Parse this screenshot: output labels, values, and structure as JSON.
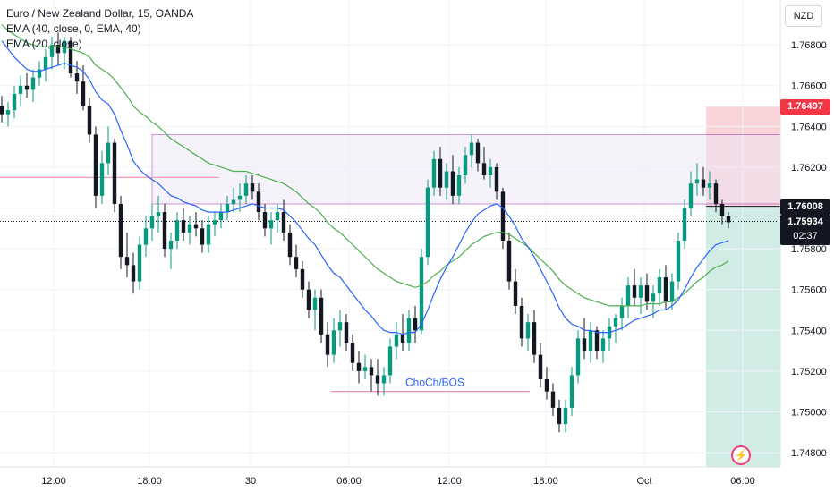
{
  "chart_data": {
    "type": "candlestick",
    "title": "Euro / New Zealand Dollar, 15, OANDA",
    "currency": "NZD",
    "indicators": [
      {
        "label": "EMA (40, close, 0, EMA, 40)",
        "color": "#4caf50"
      },
      {
        "label": "EMA (20, close)",
        "color": "#2962ff"
      }
    ],
    "y_ticks": [
      "1.76800",
      "1.76600",
      "1.76400",
      "1.76200",
      "1.76000",
      "1.75800",
      "1.75600",
      "1.75400",
      "1.75200",
      "1.75000",
      "1.74800"
    ],
    "ylim": [
      1.7473,
      1.7702
    ],
    "x_ticks": [
      "12:00",
      "18:00",
      "30",
      "06:00",
      "12:00",
      "18:00",
      "Oct",
      "06:00"
    ],
    "ohlc": [
      [
        1.765,
        1.7655,
        1.7642,
        1.7646
      ],
      [
        1.7646,
        1.7652,
        1.764,
        1.7648
      ],
      [
        1.7648,
        1.766,
        1.7644,
        1.7656
      ],
      [
        1.7656,
        1.7665,
        1.765,
        1.766
      ],
      [
        1.766,
        1.7666,
        1.7654,
        1.7658
      ],
      [
        1.7658,
        1.7668,
        1.7652,
        1.7664
      ],
      [
        1.7664,
        1.7672,
        1.766,
        1.7668
      ],
      [
        1.7668,
        1.7678,
        1.7662,
        1.7674
      ],
      [
        1.7674,
        1.7684,
        1.7668,
        1.768
      ],
      [
        1.768,
        1.7686,
        1.767,
        1.7676
      ],
      [
        1.7676,
        1.7684,
        1.7668,
        1.7682
      ],
      [
        1.7682,
        1.7684,
        1.7664,
        1.7666
      ],
      [
        1.7666,
        1.7672,
        1.7656,
        1.7662
      ],
      [
        1.7662,
        1.767,
        1.7648,
        1.765
      ],
      [
        1.765,
        1.7654,
        1.7632,
        1.7636
      ],
      [
        1.7636,
        1.764,
        1.76,
        1.7606
      ],
      [
        1.7606,
        1.7628,
        1.7602,
        1.7622
      ],
      [
        1.7622,
        1.764,
        1.7616,
        1.7632
      ],
      [
        1.7632,
        1.7634,
        1.7598,
        1.7602
      ],
      [
        1.7602,
        1.7606,
        1.757,
        1.7576
      ],
      [
        1.7576,
        1.7588,
        1.7566,
        1.7572
      ],
      [
        1.7572,
        1.7578,
        1.7558,
        1.7564
      ],
      [
        1.7564,
        1.7586,
        1.756,
        1.7582
      ],
      [
        1.7582,
        1.7596,
        1.7576,
        1.759
      ],
      [
        1.759,
        1.7602,
        1.7584,
        1.7596
      ],
      [
        1.7596,
        1.7606,
        1.7588,
        1.7598
      ],
      [
        1.7598,
        1.7602,
        1.7576,
        1.758
      ],
      [
        1.758,
        1.7588,
        1.757,
        1.7584
      ],
      [
        1.7584,
        1.7598,
        1.758,
        1.7594
      ],
      [
        1.7594,
        1.76,
        1.7584,
        1.7588
      ],
      [
        1.7588,
        1.7596,
        1.7582,
        1.7592
      ],
      [
        1.7592,
        1.7598,
        1.7586,
        1.759
      ],
      [
        1.759,
        1.7594,
        1.7578,
        1.7582
      ],
      [
        1.7582,
        1.7596,
        1.7578,
        1.7592
      ],
      [
        1.7592,
        1.7598,
        1.7586,
        1.7594
      ],
      [
        1.7594,
        1.7602,
        1.759,
        1.7598
      ],
      [
        1.7598,
        1.7606,
        1.7594,
        1.7602
      ],
      [
        1.7602,
        1.761,
        1.7598,
        1.7604
      ],
      [
        1.7604,
        1.7612,
        1.7598,
        1.7606
      ],
      [
        1.7606,
        1.7616,
        1.7602,
        1.7612
      ],
      [
        1.7612,
        1.7616,
        1.7604,
        1.7608
      ],
      [
        1.7608,
        1.7612,
        1.7594,
        1.7598
      ],
      [
        1.7598,
        1.7602,
        1.7586,
        1.759
      ],
      [
        1.759,
        1.7598,
        1.7582,
        1.7594
      ],
      [
        1.7594,
        1.7602,
        1.7588,
        1.7598
      ],
      [
        1.7598,
        1.7604,
        1.7584,
        1.7588
      ],
      [
        1.7588,
        1.7592,
        1.7572,
        1.7576
      ],
      [
        1.7576,
        1.7582,
        1.7566,
        1.757
      ],
      [
        1.757,
        1.7574,
        1.7556,
        1.756
      ],
      [
        1.756,
        1.7564,
        1.7546,
        1.755
      ],
      [
        1.755,
        1.756,
        1.754,
        1.7556
      ],
      [
        1.7556,
        1.756,
        1.7534,
        1.7538
      ],
      [
        1.7538,
        1.7544,
        1.7522,
        1.7528
      ],
      [
        1.7528,
        1.7546,
        1.7524,
        1.754
      ],
      [
        1.754,
        1.755,
        1.7532,
        1.7544
      ],
      [
        1.7544,
        1.7548,
        1.753,
        1.7534
      ],
      [
        1.7534,
        1.7538,
        1.752,
        1.7524
      ],
      [
        1.7524,
        1.753,
        1.7514,
        1.752
      ],
      [
        1.752,
        1.7528,
        1.7516,
        1.7522
      ],
      [
        1.7522,
        1.7526,
        1.751,
        1.7518
      ],
      [
        1.7518,
        1.7526,
        1.7508,
        1.7514
      ],
      [
        1.7514,
        1.7522,
        1.7508,
        1.7518
      ],
      [
        1.7518,
        1.7536,
        1.7514,
        1.7532
      ],
      [
        1.7532,
        1.7544,
        1.7526,
        1.7538
      ],
      [
        1.7538,
        1.7548,
        1.753,
        1.7534
      ],
      [
        1.7534,
        1.755,
        1.753,
        1.7546
      ],
      [
        1.7546,
        1.7552,
        1.7534,
        1.754
      ],
      [
        1.754,
        1.758,
        1.7538,
        1.7576
      ],
      [
        1.7576,
        1.7614,
        1.7572,
        1.761
      ],
      [
        1.761,
        1.7628,
        1.7606,
        1.7624
      ],
      [
        1.7624,
        1.763,
        1.7606,
        1.761
      ],
      [
        1.761,
        1.7622,
        1.7604,
        1.7618
      ],
      [
        1.7618,
        1.7626,
        1.7602,
        1.7606
      ],
      [
        1.7606,
        1.762,
        1.7602,
        1.7616
      ],
      [
        1.7616,
        1.763,
        1.7612,
        1.7626
      ],
      [
        1.7626,
        1.7636,
        1.762,
        1.7632
      ],
      [
        1.7632,
        1.7634,
        1.7618,
        1.7622
      ],
      [
        1.7622,
        1.763,
        1.7614,
        1.7616
      ],
      [
        1.7616,
        1.7624,
        1.761,
        1.762
      ],
      [
        1.762,
        1.7622,
        1.7604,
        1.7608
      ],
      [
        1.7608,
        1.761,
        1.758,
        1.7584
      ],
      [
        1.7584,
        1.7588,
        1.756,
        1.7564
      ],
      [
        1.7564,
        1.757,
        1.7548,
        1.7552
      ],
      [
        1.7552,
        1.7556,
        1.7532,
        1.7536
      ],
      [
        1.7536,
        1.7548,
        1.753,
        1.7544
      ],
      [
        1.7544,
        1.755,
        1.7524,
        1.7528
      ],
      [
        1.7528,
        1.7534,
        1.7512,
        1.7516
      ],
      [
        1.7516,
        1.7522,
        1.7506,
        1.751
      ],
      [
        1.751,
        1.7514,
        1.7498,
        1.7502
      ],
      [
        1.7502,
        1.7506,
        1.749,
        1.7494
      ],
      [
        1.7494,
        1.7506,
        1.749,
        1.7502
      ],
      [
        1.7502,
        1.7522,
        1.7498,
        1.7518
      ],
      [
        1.7518,
        1.754,
        1.7514,
        1.7536
      ],
      [
        1.7536,
        1.7546,
        1.7526,
        1.753
      ],
      [
        1.753,
        1.7544,
        1.7524,
        1.754
      ],
      [
        1.754,
        1.7542,
        1.7526,
        1.753
      ],
      [
        1.753,
        1.754,
        1.7524,
        1.7536
      ],
      [
        1.7536,
        1.7546,
        1.753,
        1.7542
      ],
      [
        1.7542,
        1.7548,
        1.7534,
        1.7546
      ],
      [
        1.7546,
        1.7556,
        1.754,
        1.7552
      ],
      [
        1.7552,
        1.7566,
        1.7546,
        1.7562
      ],
      [
        1.7562,
        1.757,
        1.7552,
        1.7556
      ],
      [
        1.7556,
        1.7566,
        1.7548,
        1.7562
      ],
      [
        1.7562,
        1.7568,
        1.755,
        1.7554
      ],
      [
        1.7554,
        1.7562,
        1.7546,
        1.7558
      ],
      [
        1.7558,
        1.757,
        1.7552,
        1.7566
      ],
      [
        1.7566,
        1.7572,
        1.755,
        1.7554
      ],
      [
        1.7554,
        1.7568,
        1.755,
        1.7564
      ],
      [
        1.7564,
        1.7588,
        1.756,
        1.7584
      ],
      [
        1.7584,
        1.7604,
        1.758,
        1.76
      ],
      [
        1.76,
        1.7618,
        1.7596,
        1.7612
      ],
      [
        1.7612,
        1.7622,
        1.7606,
        1.7614
      ],
      [
        1.7614,
        1.762,
        1.7606,
        1.761
      ],
      [
        1.761,
        1.7618,
        1.7604,
        1.7612
      ],
      [
        1.7612,
        1.7614,
        1.7598,
        1.7602
      ],
      [
        1.7602,
        1.7604,
        1.7592,
        1.7596
      ],
      [
        1.7596,
        1.7598,
        1.759,
        1.7593
      ]
    ],
    "ema20": [
      1.7682,
      1.7678,
      1.7674,
      1.7671,
      1.7668,
      1.7667,
      1.7667,
      1.7668,
      1.7669,
      1.767,
      1.7671,
      1.767,
      1.7669,
      1.7667,
      1.7663,
      1.7657,
      1.7653,
      1.7651,
      1.7646,
      1.7638,
      1.7631,
      1.7623,
      1.7619,
      1.7616,
      1.7614,
      1.7612,
      1.7609,
      1.7606,
      1.7605,
      1.7603,
      1.7602,
      1.7601,
      1.7599,
      1.7598,
      1.7598,
      1.7598,
      1.7598,
      1.7599,
      1.76,
      1.7601,
      1.7602,
      1.7601,
      1.76,
      1.76,
      1.76,
      1.7599,
      1.7596,
      1.7593,
      1.7589,
      1.7585,
      1.7582,
      1.7577,
      1.7572,
      1.7568,
      1.7566,
      1.7562,
      1.7558,
      1.7554,
      1.755,
      1.7547,
      1.7543,
      1.754,
      1.7539,
      1.7539,
      1.7538,
      1.7539,
      1.7539,
      1.7543,
      1.755,
      1.7558,
      1.7565,
      1.7571,
      1.7576,
      1.7582,
      1.7588,
      1.7593,
      1.7597,
      1.7599,
      1.7601,
      1.7602,
      1.76,
      1.7596,
      1.7591,
      1.7585,
      1.7581,
      1.7576,
      1.757,
      1.7564,
      1.7558,
      1.7551,
      1.7546,
      1.7543,
      1.7542,
      1.754,
      1.754,
      1.7539,
      1.7539,
      1.7539,
      1.754,
      1.7541,
      1.7543,
      1.7545,
      1.7546,
      1.7547,
      1.7548,
      1.755,
      1.755,
      1.7552,
      1.7555,
      1.756,
      1.7566,
      1.7571,
      1.7575,
      1.7579,
      1.7582,
      1.7583,
      1.7584
    ],
    "ema40": [
      1.769,
      1.7687,
      1.7685,
      1.7683,
      1.7681,
      1.768,
      1.7679,
      1.7679,
      1.7679,
      1.7679,
      1.7679,
      1.7678,
      1.7677,
      1.7676,
      1.7674,
      1.767,
      1.7668,
      1.7666,
      1.7663,
      1.7659,
      1.7655,
      1.765,
      1.7647,
      1.7645,
      1.7642,
      1.764,
      1.7637,
      1.7634,
      1.7632,
      1.763,
      1.7628,
      1.7626,
      1.7624,
      1.7622,
      1.7621,
      1.762,
      1.7619,
      1.7618,
      1.7618,
      1.7618,
      1.7617,
      1.7616,
      1.7615,
      1.7614,
      1.7613,
      1.7612,
      1.761,
      1.7608,
      1.7605,
      1.7602,
      1.76,
      1.7597,
      1.7593,
      1.759,
      1.7588,
      1.7585,
      1.7582,
      1.7579,
      1.7576,
      1.7573,
      1.757,
      1.7568,
      1.7566,
      1.7564,
      1.7563,
      1.7562,
      1.7561,
      1.7562,
      1.7564,
      1.7567,
      1.7569,
      1.7572,
      1.7574,
      1.7576,
      1.7579,
      1.7582,
      1.7584,
      1.7586,
      1.7587,
      1.7588,
      1.7588,
      1.7587,
      1.7585,
      1.7583,
      1.7581,
      1.7578,
      1.7575,
      1.7572,
      1.7569,
      1.7565,
      1.7562,
      1.756,
      1.7558,
      1.7556,
      1.7555,
      1.7554,
      1.7553,
      1.7552,
      1.7552,
      1.7552,
      1.7552,
      1.7552,
      1.7552,
      1.7553,
      1.7553,
      1.7553,
      1.7554,
      1.7554,
      1.7556,
      1.7558,
      1.7561,
      1.7564,
      1.7566,
      1.7569,
      1.7571,
      1.7572,
      1.7574
    ],
    "zone": {
      "top": 1.7636,
      "bottom": 1.7602
    },
    "pink_level": 1.7615,
    "bos_level": 1.751,
    "bos_label": "ChoCh/BOS",
    "position": {
      "stop": 1.76497,
      "entry": 1.76008,
      "target": 1.7473
    },
    "last_price": {
      "value": "1.75934",
      "countdown": "02:37"
    },
    "badges": {
      "stop": "1.76497",
      "entry": "1.76008"
    },
    "colors": {
      "up": "#089981",
      "down": "#131722",
      "ema20": "#2962ff",
      "ema40": "#4caf50",
      "zone_border": "#9c27b0",
      "stop_fill": "#f7c6cb",
      "target_fill": "#c9e9df",
      "stop_badge": "#f23645",
      "entry_badge": "#131722",
      "pink_line": "#f48fb1",
      "bos": "#2962ff"
    }
  },
  "ui": {
    "currency_button": "NZD",
    "flash_icon": "lightning-icon"
  }
}
